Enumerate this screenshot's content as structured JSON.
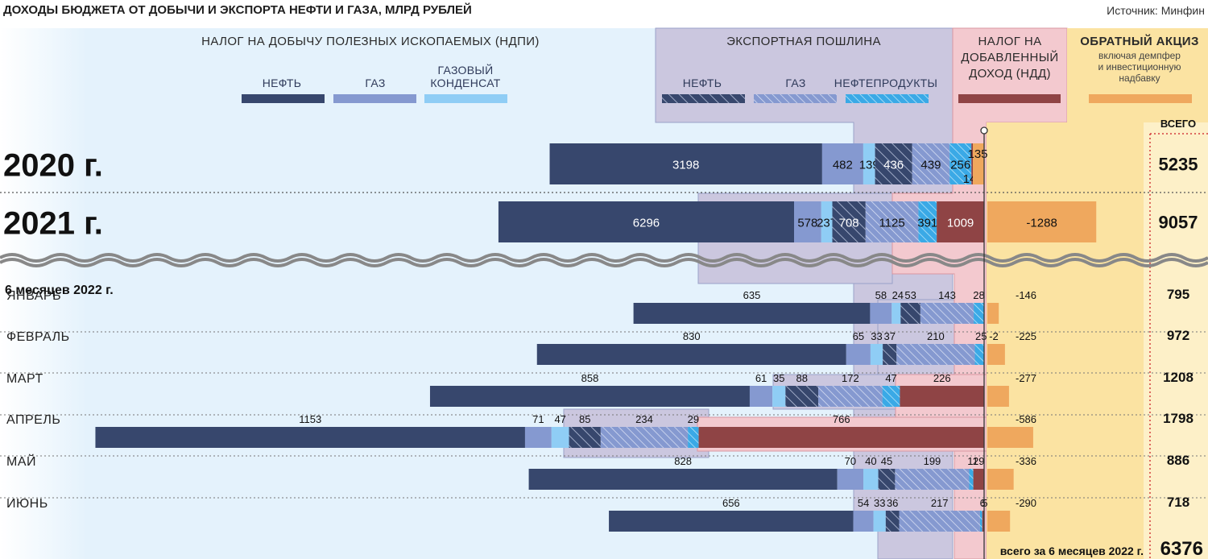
{
  "title": "ДОХОДЫ БЮДЖЕТА ОТ ДОБЫЧИ И ЭКСПОРТА НЕФТИ И ГАЗА, МЛРД РУБЛЕЙ",
  "source": "Источник: Минфин",
  "groups": {
    "ndpi": "НАЛОГ НА ДОБЫЧУ ПОЛЕЗНЫХ ИСКОПАЕМЫХ (НДПИ)",
    "export": "ЭКСПОРТНАЯ ПОШЛИНА",
    "ndd": [
      "НАЛОГ НА",
      "ДОБАВЛЕННЫЙ",
      "ДОХОД (НДД)"
    ],
    "excise": "ОБРАТНЫЙ АКЦИЗ",
    "excise_note": [
      "включая демпфер",
      "и инвестиционную",
      "надбавку"
    ]
  },
  "legend": {
    "oil": "НЕФТЬ",
    "gas": "ГАЗ",
    "condensate": [
      "ГАЗОВЫЙ",
      "КОНДЕНСАТ"
    ],
    "exp_oil": "НЕФТЬ",
    "exp_gas": "ГАЗ",
    "exp_products": "НЕФТЕПРОДУКТЫ"
  },
  "total_label": "ВСЕГО",
  "section_label": "6 месяцев 2022 г.",
  "grand_total_label": "всего за 6 месяцев 2022 г.",
  "grand_total_value": "6376",
  "colors": {
    "oil": "#37476d",
    "gas": "#8599d0",
    "condensate": "#8fcdf5",
    "ndd": "#8f4445",
    "excise": "#efa85e",
    "ndpi_bg": "#e4f2fc",
    "export_bg": "#cbc7df",
    "ndd_bg": "#f3c9cf",
    "excise_bg": "#fbe3a2"
  },
  "chart_data": {
    "type": "bar",
    "orientation": "horizontal",
    "stacked": true,
    "title": "ДОХОДЫ БЮДЖЕТА ОТ ДОБЫЧИ И ЭКСПОРТА НЕФТИ И ГАЗА, МЛРД РУБЛЕЙ",
    "categories": [
      "2020 г.",
      "2021 г.",
      "ЯНВАРЬ",
      "ФЕВРАЛЬ",
      "МАРТ",
      "АПРЕЛЬ",
      "МАЙ",
      "ИЮНЬ"
    ],
    "series": [
      {
        "name": "НЕФТЬ",
        "values": [
          3198,
          6296,
          635,
          830,
          858,
          1153,
          828,
          656
        ]
      },
      {
        "name": "ГАЗ",
        "values": [
          482,
          578,
          58,
          65,
          61,
          71,
          70,
          54
        ]
      },
      {
        "name": "ГАЗОВЫЙ КОНДЕНСАТ",
        "values": [
          139,
          237,
          24,
          33,
          35,
          47,
          40,
          33
        ]
      },
      {
        "name": "НЕФТЬ",
        "values": [
          436,
          708,
          53,
          37,
          88,
          85,
          45,
          36
        ]
      },
      {
        "name": "ГАЗ",
        "values": [
          439,
          1125,
          143,
          210,
          172,
          234,
          199,
          217
        ]
      },
      {
        "name": "НЕФТЕПРОДУКТЫ",
        "values": [
          256,
          391,
          28,
          25,
          47,
          29,
          11,
          6
        ]
      },
      {
        "name": "НАЛОГ НА ДОБАВЛЕННЫЙ ДОХОД (НДД)",
        "values": [
          149,
          1009,
          0,
          -2,
          226,
          766,
          29,
          5
        ]
      },
      {
        "name": "ОБРАТНЫЙ АКЦИЗ",
        "values": [
          135,
          -1288,
          -146,
          -225,
          -277,
          -586,
          -336,
          -290
        ]
      }
    ],
    "totals": [
      5235,
      9057,
      795,
      972,
      1208,
      1798,
      886,
      718
    ]
  }
}
